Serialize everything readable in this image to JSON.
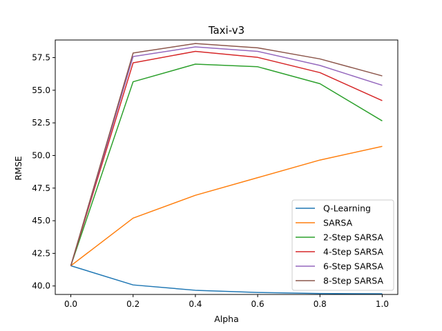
{
  "chart_data": {
    "type": "line",
    "title": "Taxi-v3",
    "xlabel": "Alpha",
    "ylabel": "RMSE",
    "x": [
      0.0,
      0.2,
      0.4,
      0.6,
      0.8,
      1.0
    ],
    "xlim": [
      -0.05,
      1.05
    ],
    "ylim": [
      39.35,
      58.85
    ],
    "xticks": [
      "0.0",
      "0.2",
      "0.4",
      "0.6",
      "0.8",
      "1.0"
    ],
    "yticks": [
      "40.0",
      "42.5",
      "45.0",
      "47.5",
      "50.0",
      "52.5",
      "55.0",
      "57.5"
    ],
    "grid": false,
    "legend_position": "lower-right",
    "series": [
      {
        "name": "Q-Learning",
        "color": "#1f77b4",
        "values": [
          41.55,
          40.08,
          39.67,
          39.5,
          39.42,
          39.4
        ]
      },
      {
        "name": "SARSA",
        "color": "#ff7f0e",
        "values": [
          41.55,
          45.2,
          46.95,
          48.3,
          49.65,
          50.7
        ]
      },
      {
        "name": "2-Step SARSA",
        "color": "#2ca02c",
        "values": [
          41.55,
          55.65,
          57.0,
          56.8,
          55.5,
          52.65
        ]
      },
      {
        "name": "4-Step SARSA",
        "color": "#d62728",
        "values": [
          41.55,
          57.1,
          57.98,
          57.52,
          56.35,
          54.2
        ]
      },
      {
        "name": "6-Step SARSA",
        "color": "#9467bd",
        "values": [
          41.55,
          57.58,
          58.32,
          57.98,
          56.9,
          55.38
        ]
      },
      {
        "name": "8-Step SARSA",
        "color": "#8c564b",
        "values": [
          41.55,
          57.85,
          58.58,
          58.25,
          57.4,
          56.1
        ]
      }
    ]
  }
}
